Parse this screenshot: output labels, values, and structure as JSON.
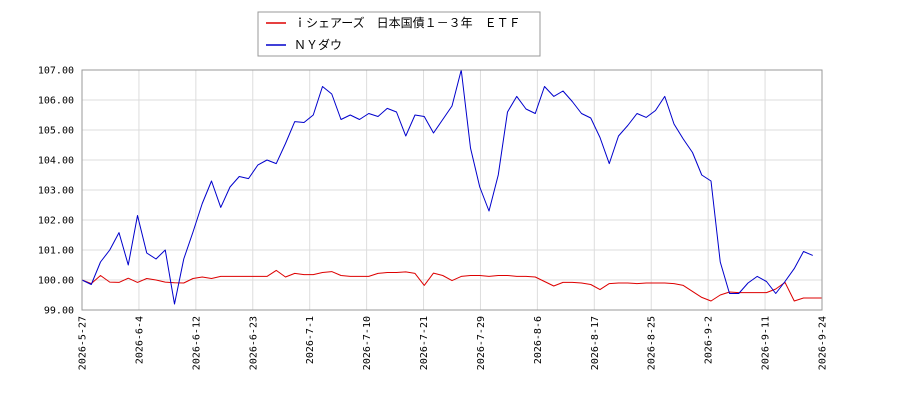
{
  "chart_data": {
    "type": "line",
    "title": "",
    "xlabel": "",
    "ylabel": "",
    "ylim": [
      99.0,
      107.0
    ],
    "y_ticks": [
      "107.00",
      "106.00",
      "105.00",
      "104.00",
      "103.00",
      "102.00",
      "101.00",
      "100.00",
      "99.00"
    ],
    "x_ticks": [
      "2026-5-27",
      "2026-6-4",
      "2026-6-12",
      "2026-6-23",
      "2026-7-1",
      "2026-7-10",
      "2026-7-21",
      "2026-7-29",
      "2026-8-6",
      "2026-8-17",
      "2026-8-25",
      "2026-9-2",
      "2026-9-11",
      "2026-9-24"
    ],
    "grid": true,
    "legend_position": "top-center",
    "series": [
      {
        "name": "ｉシェアーズ　日本国債１－３年　ＥＴＦ",
        "color": "#dd0000",
        "values": [
          100.0,
          99.88,
          100.15,
          99.93,
          99.92,
          100.06,
          99.92,
          100.05,
          100.0,
          99.93,
          99.91,
          99.9,
          100.05,
          100.1,
          100.05,
          100.12,
          100.12,
          100.12,
          100.12,
          100.12,
          100.12,
          100.32,
          100.1,
          100.22,
          100.18,
          100.18,
          100.25,
          100.28,
          100.15,
          100.12,
          100.12,
          100.12,
          100.22,
          100.25,
          100.25,
          100.27,
          100.22,
          99.82,
          100.23,
          100.15,
          99.98,
          100.12,
          100.15,
          100.15,
          100.12,
          100.15,
          100.15,
          100.12,
          100.12,
          100.1,
          99.95,
          99.8,
          99.92,
          99.92,
          99.9,
          99.85,
          99.68,
          99.88,
          99.9,
          99.9,
          99.88,
          99.9,
          99.9,
          99.9,
          99.88,
          99.82,
          99.62,
          99.42,
          99.3,
          99.5,
          99.6,
          99.58,
          99.58,
          99.58,
          99.58,
          99.7,
          99.92,
          99.3,
          99.4,
          99.4,
          99.4
        ]
      },
      {
        "name": "ＮＹダウ",
        "color": "#0000cc",
        "values": [
          100.0,
          99.85,
          100.6,
          101.0,
          101.58,
          100.5,
          102.15,
          100.9,
          100.7,
          101.0,
          99.2,
          100.7,
          101.6,
          102.55,
          103.3,
          102.42,
          103.1,
          103.45,
          103.38,
          103.83,
          104.0,
          103.88,
          104.55,
          105.28,
          105.25,
          105.5,
          106.45,
          106.2,
          105.35,
          105.5,
          105.35,
          105.55,
          105.45,
          105.72,
          105.6,
          104.8,
          105.5,
          105.45,
          104.9,
          105.35,
          105.8,
          107.0,
          104.4,
          103.1,
          102.3,
          103.5,
          105.6,
          106.12,
          105.7,
          105.55,
          106.45,
          106.12,
          106.3,
          105.95,
          105.55,
          105.4,
          104.75,
          103.88,
          104.8,
          105.15,
          105.55,
          105.42,
          105.65,
          106.12,
          105.2,
          104.7,
          104.25,
          103.5,
          103.3,
          100.6,
          99.55,
          99.55,
          99.9,
          100.12,
          99.95,
          99.55,
          99.95,
          100.38,
          100.95,
          100.82
        ]
      }
    ]
  }
}
